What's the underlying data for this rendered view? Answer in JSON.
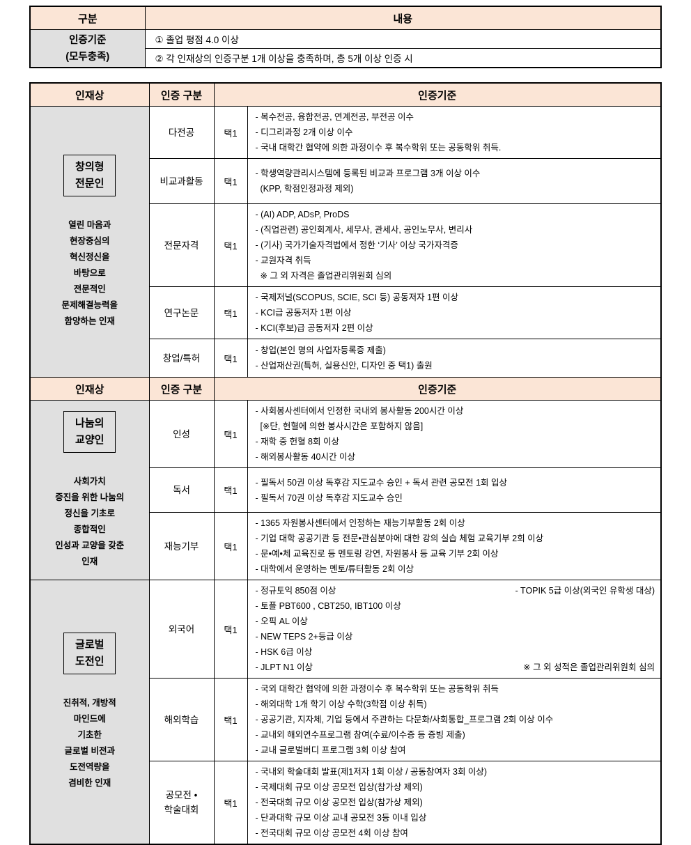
{
  "colors": {
    "header_bg": "#fbe5d6",
    "label_bg": "#e0e0e0",
    "border": "#000000"
  },
  "top_table": {
    "headers": {
      "col1": "구분",
      "col2": "내용"
    },
    "row_label": [
      "인증기준",
      "(모두충족)"
    ],
    "items": [
      "① 졸업 평점 4.0 이상",
      "② 각 인재상의 인증구분 1개 이상을 충족하며, 총 5개 이상 인증 시"
    ]
  },
  "main_table": {
    "header": {
      "talent": "인재상",
      "category": "인증 구분",
      "criteria": "인증기준"
    },
    "sections": [
      {
        "talent_box": [
          "창의형",
          "전문인"
        ],
        "talent_desc": [
          "열린 마음과",
          "현장중심의",
          "혁신정신을",
          "바탕으로",
          "전문적인",
          "문제해결능력을",
          "함양하는 인재"
        ],
        "rows": [
          {
            "category": "다전공",
            "choice": "택1",
            "lines": [
              "- 복수전공, 융합전공, 연계전공, 부전공 이수",
              "- 디그리과정 2개 이상 이수",
              "- 국내 대학간 협약에 의한 과정이수 후 복수학위 또는 공동학위 취득."
            ]
          },
          {
            "category": "비교과활동",
            "choice": "택1",
            "lines": [
              "- 학생역량관리시스템에 등록된 비교과 프로그램 3개 이상 이수",
              "  (KPP, 학점인정과정 제외)"
            ]
          },
          {
            "category": "전문자격",
            "choice": "택1",
            "lines": [
              "- (AI) ADP, ADsP, ProDS",
              "- (직업관련) 공인회계사, 세무사, 관세사, 공인노무사, 변리사",
              "- (기사) 국가기술자격법에서 정한 ‘기사’ 이상 국가자격증",
              "- 교원자격 취득",
              "  ※ 그 외 자격은 졸업관리위원회 심의"
            ]
          },
          {
            "category": "연구논문",
            "choice": "택1",
            "lines": [
              "- 국제저널(SCOPUS, SCIE, SCI 등) 공동저자 1편 이상",
              "- KCI급 공동저자 1편 이상",
              "- KCI(후보)급 공동저자 2편 이상"
            ]
          },
          {
            "category": "창업/특허",
            "choice": "택1",
            "lines": [
              "- 창업(본인 명의 사업자등록증 제출)",
              "- 산업재산권(특허, 실용신안, 디자인 중 택1) 출원"
            ]
          }
        ]
      },
      {
        "talent_box": [
          "나눔의",
          "교양인"
        ],
        "talent_desc": [
          "사회가치",
          "증진을 위한 나눔의",
          "정신을 기초로",
          "종합적인",
          "인성과 교양을 갖춘",
          "인재"
        ],
        "rows": [
          {
            "category": "인성",
            "choice": "택1",
            "lines": [
              "- 사회봉사센터에서 인정한 국내외 봉사활동 200시간 이상",
              "  [※단, 헌혈에 의한 봉사시간은 포함하지 않음]",
              "- 재학 중 헌혈 8회 이상",
              "- 해외봉사활동 40시간 이상"
            ]
          },
          {
            "category": "독서",
            "choice": "택1",
            "lines": [
              "- 필독서 50권 이상 독후감 지도교수 승인 + 독서 관련 공모전 1회 입상",
              "- 필독서 70권 이상 독후감 지도교수 승인"
            ]
          },
          {
            "category": "재능기부",
            "choice": "택1",
            "lines": [
              "- 1365 자원봉사센터에서 인정하는 재능기부활동 2회 이상",
              "- 기업 대학 공공기관 등 전문•관심분야에 대한 강의 실습 체험 교육기부 2회 이상",
              "- 문•예•체 교육진로 등 멘토링 강연, 자원봉사 등 교육 기부 2회 이상",
              "- 대학에서 운영하는 멘토/튜터활동 2회 이상"
            ]
          }
        ]
      },
      {
        "talent_box": [
          "글로벌",
          "도전인"
        ],
        "talent_desc": [
          "진취적, 개방적",
          "마인드에",
          "기초한",
          "글로벌 비전과",
          "도전역량을",
          "겸비한 인재"
        ],
        "rows": [
          {
            "category": "외국어",
            "choice": "택1",
            "lines": [
              {
                "left": "- 정규토익 850점 이상",
                "right": "- TOPIK 5급 이상(외국인 유학생 대상)"
              },
              "- 토플 PBT600 , CBT250, IBT100 이상",
              "- 오픽 AL 이상",
              "- NEW TEPS 2+등급 이상",
              "- HSK 6급 이상",
              {
                "left": "- JLPT N1 이상",
                "right": "※ 그 외 성적은 졸업관리위원회 심의"
              }
            ]
          },
          {
            "category": "해외학습",
            "choice": "택1",
            "lines": [
              "- 국외 대학간 협약에 의한 과정이수 후 복수학위 또는 공동학위 취득",
              "- 해외대학 1개 학기 이상 수학(3학점 이상 취득)",
              "- 공공기관, 지자체, 기업 등에서 주관하는 다문화/사회통합_프로그램 2회 이상 이수",
              "- 교내외 해외연수프로그램 참여(수료/이수증 등 증빙 제출)",
              "- 교내 글로벌버디 프로그램 3회 이상 참여"
            ]
          },
          {
            "category": "공모전 •\n학술대회",
            "choice": "택1",
            "lines": [
              "- 국내외 학술대회 발표(제1저자 1회 이상 / 공동참여자 3회 이상)",
              "- 국제대회 규모 이상 공모전 입상(참가상 제외)",
              "- 전국대회 규모 이상 공모전 입상(참가상 제외)",
              "- 단과대학 규모 이상 교내 공모전 3등 이내 입상",
              "- 전국대회 규모 이상 공모전 4회 이상 참여"
            ]
          }
        ]
      }
    ]
  }
}
